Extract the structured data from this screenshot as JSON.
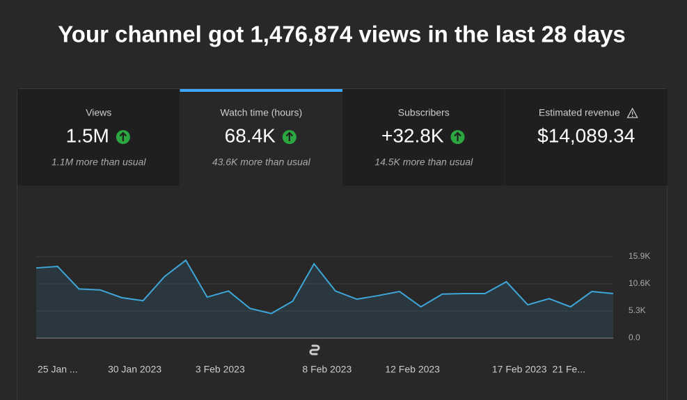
{
  "header": {
    "title": "Your channel got 1,476,874 views in the last 28 days"
  },
  "tabs": [
    {
      "label": "Views",
      "value": "1.5M",
      "note": "1.1M more than usual"
    },
    {
      "label": "Watch time (hours)",
      "value": "68.4K",
      "note": "43.6K more than usual"
    },
    {
      "label": "Subscribers",
      "value": "+32.8K",
      "note": "14.5K more than usual"
    },
    {
      "label": "Estimated revenue",
      "value": "$14,089.34"
    }
  ],
  "chart_data": {
    "type": "line",
    "categories": [
      "25 Jan ...",
      null,
      null,
      null,
      null,
      "30 Jan 2023",
      null,
      null,
      null,
      "3 Feb 2023",
      null,
      null,
      null,
      null,
      "8 Feb 2023",
      null,
      null,
      null,
      "12 Feb 2023",
      null,
      null,
      null,
      null,
      "17 Feb 2023",
      null,
      null,
      null,
      "21 Fe..."
    ],
    "values": [
      13700,
      14000,
      9600,
      9400,
      7900,
      7300,
      12000,
      15200,
      8000,
      9200,
      5800,
      4800,
      7200,
      14500,
      9200,
      7600,
      8300,
      9100,
      6100,
      8600,
      8700,
      8700,
      11000,
      6500,
      7700,
      6100,
      9100,
      8700
    ],
    "color": "#3ea6d8",
    "ylim": [
      0,
      15900
    ],
    "yticks": [
      {
        "value": 0,
        "label": "0.0"
      },
      {
        "value": 5300,
        "label": "5.3K"
      },
      {
        "value": 10600,
        "label": "10.6K"
      },
      {
        "value": 15900,
        "label": "15.9K"
      }
    ],
    "grid": true
  }
}
